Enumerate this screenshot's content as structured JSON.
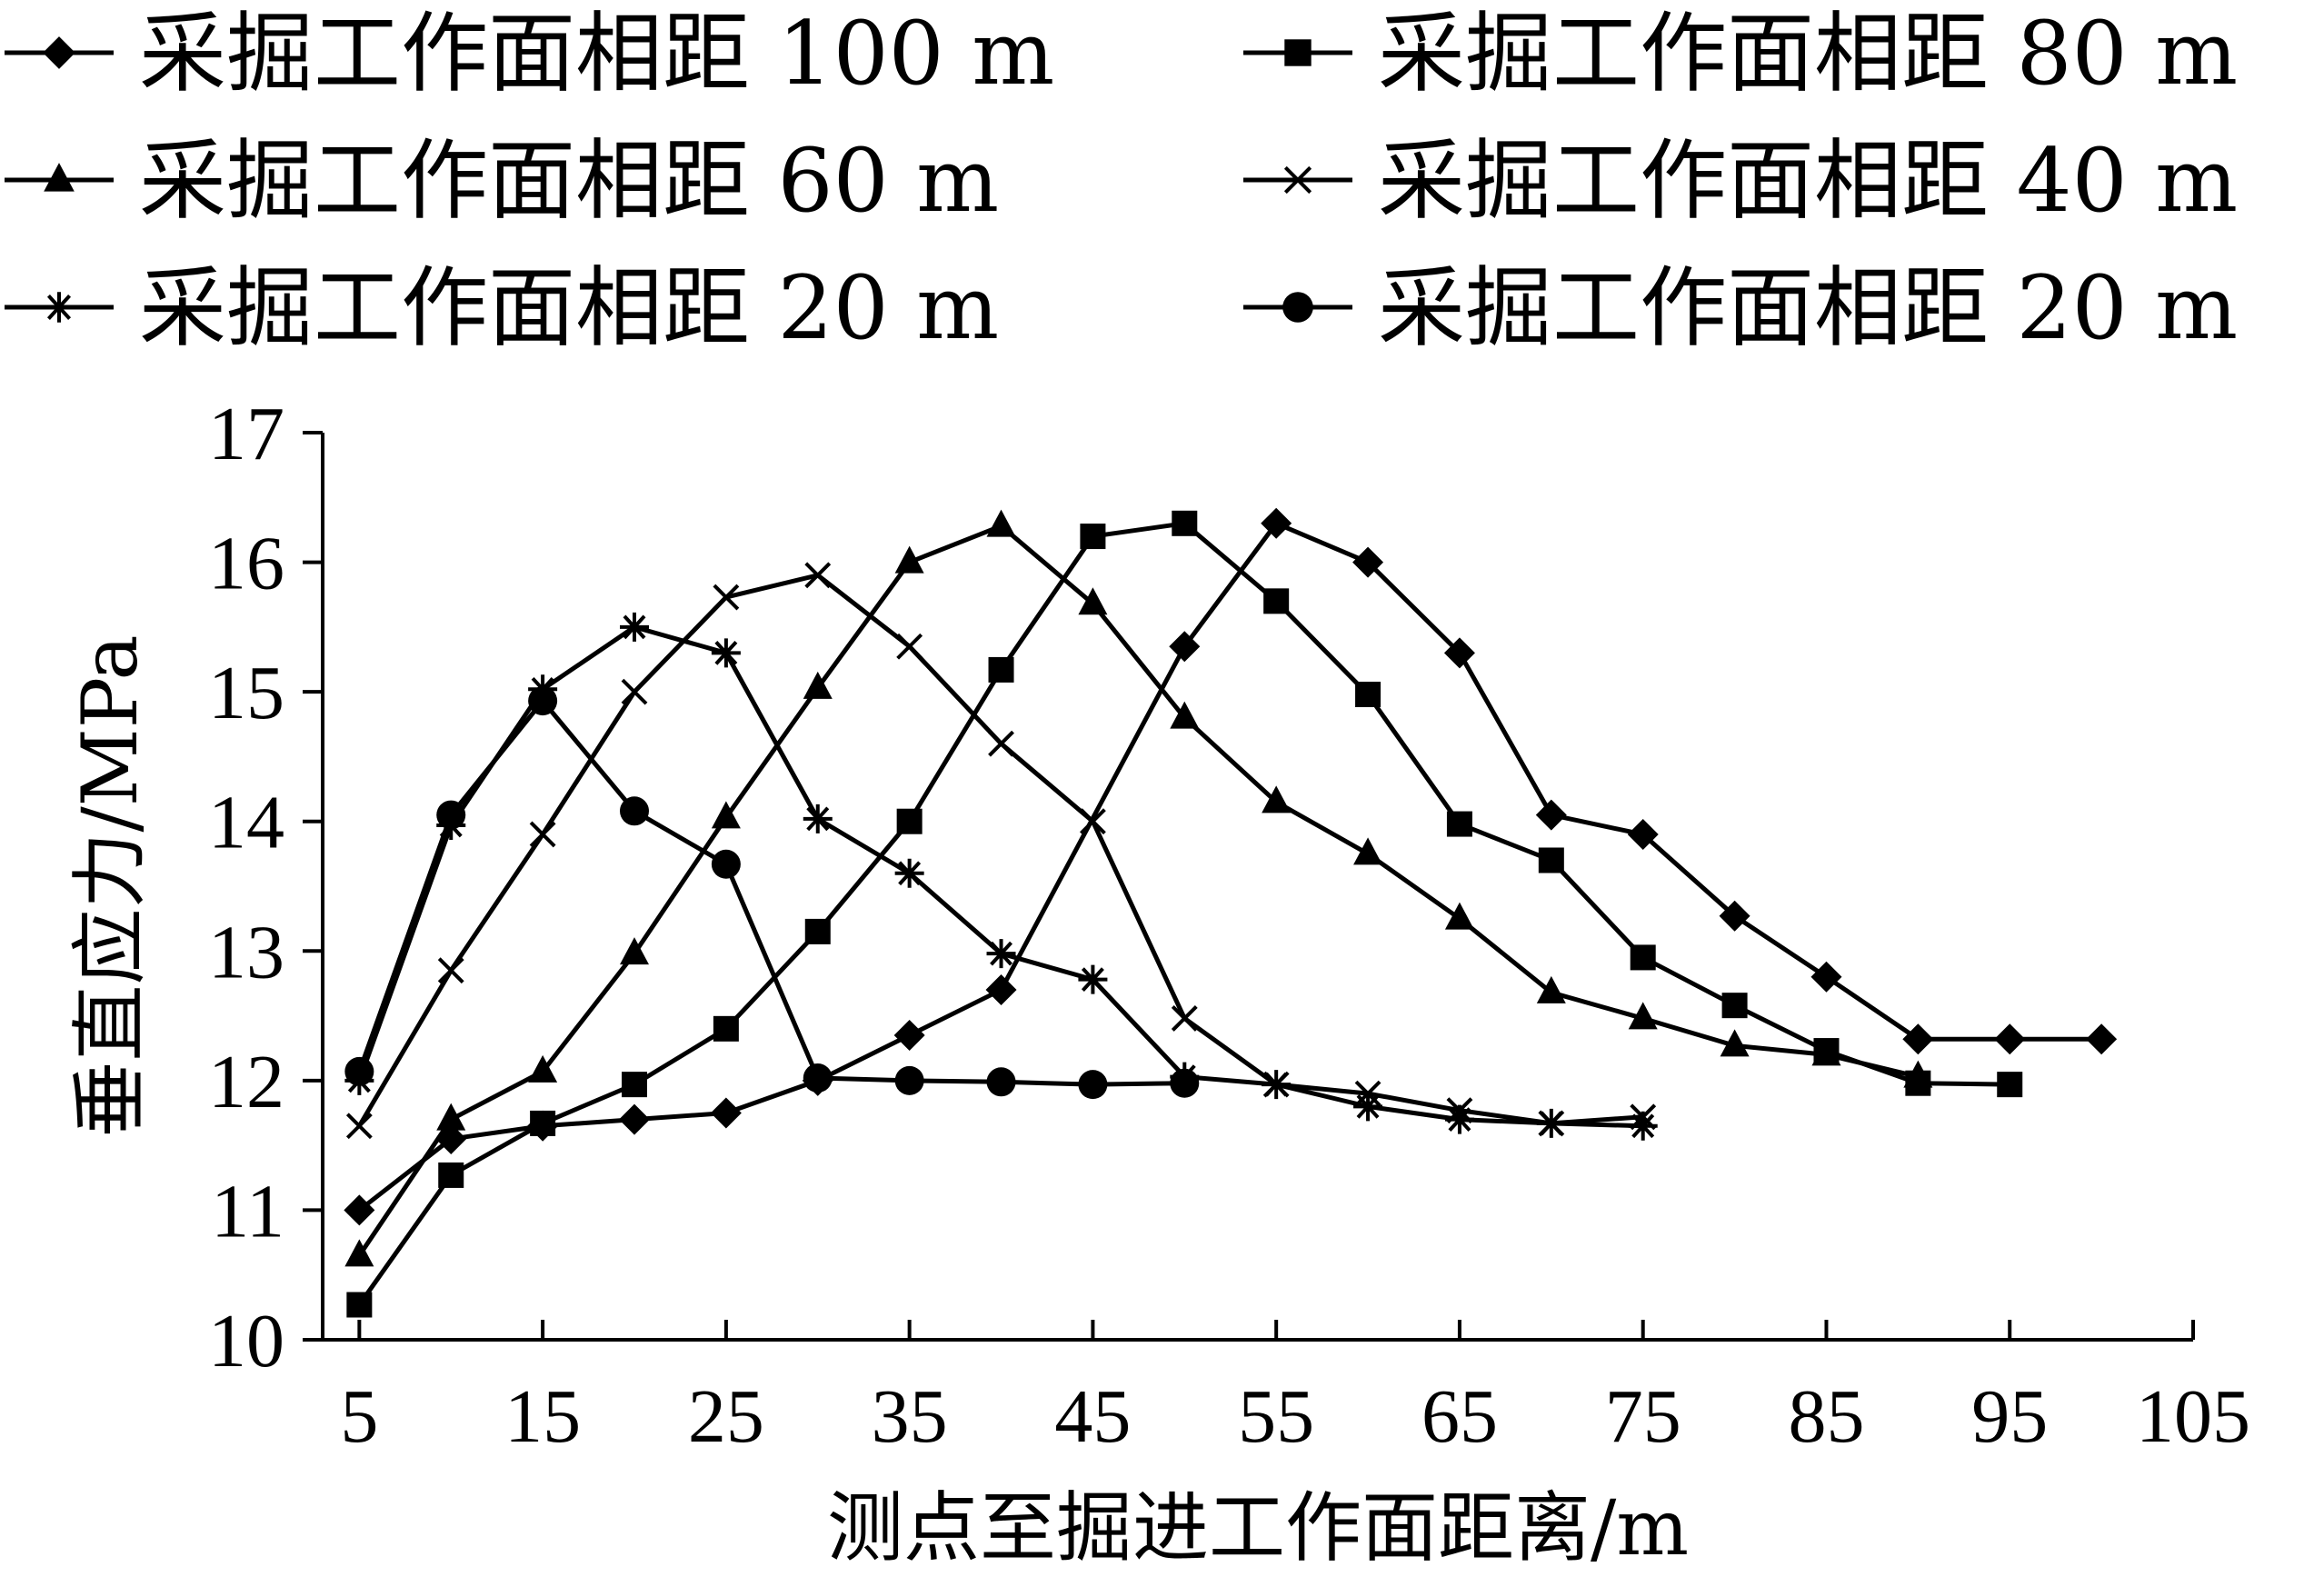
{
  "chart_data": {
    "type": "line",
    "title": "",
    "xlabel": "测点至掘进工作面距离/m",
    "ylabel": "垂直应力/MPa",
    "xlim": [
      3,
      105
    ],
    "ylim": [
      10,
      17
    ],
    "xticks": [
      5,
      15,
      25,
      35,
      45,
      55,
      65,
      75,
      85,
      95,
      105
    ],
    "yticks": [
      10,
      11,
      12,
      13,
      14,
      15,
      16,
      17
    ],
    "grid": false,
    "legend_position": "top",
    "series": [
      {
        "name": "采掘工作面相距 100 m",
        "marker": "diamond",
        "x": [
          5,
          10,
          15,
          20,
          25,
          30,
          35,
          40,
          50,
          55,
          60,
          65,
          70,
          75,
          80,
          85,
          90,
          95,
          100
        ],
        "y": [
          11.0,
          11.55,
          11.65,
          11.7,
          11.75,
          12.0,
          12.35,
          12.7,
          15.35,
          16.3,
          16.0,
          15.3,
          14.05,
          13.9,
          13.27,
          12.8,
          12.32,
          12.32,
          12.32
        ]
      },
      {
        "name": "采掘工作面相距 80 m",
        "marker": "square",
        "x": [
          5,
          10,
          15,
          20,
          25,
          30,
          35,
          40,
          45,
          50,
          55,
          60,
          65,
          70,
          75,
          80,
          85,
          90,
          95
        ],
        "y": [
          10.27,
          11.27,
          11.67,
          11.97,
          12.4,
          13.15,
          14.0,
          15.17,
          16.2,
          16.3,
          15.7,
          14.98,
          13.98,
          13.7,
          12.95,
          12.58,
          12.23,
          11.98,
          11.97
        ]
      },
      {
        "name": "采掘工作面相距 60 m",
        "marker": "triangle",
        "x": [
          5,
          10,
          15,
          20,
          25,
          30,
          35,
          40,
          45,
          50,
          55,
          60,
          65,
          70,
          75,
          80,
          85,
          90
        ],
        "y": [
          10.65,
          11.7,
          12.07,
          12.98,
          14.03,
          15.03,
          16.0,
          16.28,
          15.68,
          14.8,
          14.15,
          13.75,
          13.25,
          12.68,
          12.48,
          12.27,
          12.2,
          12.03
        ]
      },
      {
        "name": "采掘工作面相距 40 m",
        "marker": "x",
        "x": [
          5,
          10,
          15,
          20,
          25,
          30,
          35,
          40,
          45,
          50,
          55,
          60,
          65,
          70,
          75
        ],
        "y": [
          11.65,
          12.85,
          13.9,
          15.0,
          15.73,
          15.9,
          15.35,
          14.6,
          14.0,
          12.48,
          11.97,
          11.9,
          11.77,
          11.67,
          11.72
        ]
      },
      {
        "name": "采掘工作面相距 20 m",
        "marker": "asterisk",
        "x": [
          5,
          10,
          15,
          20,
          25,
          30,
          35,
          40,
          45,
          50,
          55,
          60,
          65,
          70,
          75
        ],
        "y": [
          12.0,
          13.97,
          15.02,
          15.5,
          15.3,
          14.02,
          13.6,
          12.98,
          12.78,
          12.03,
          11.97,
          11.8,
          11.7,
          11.67,
          11.65
        ]
      },
      {
        "name": "采掘工作面相距 20 m",
        "marker": "circle",
        "x": [
          5,
          10,
          15,
          20,
          25,
          30,
          35,
          40,
          45,
          50
        ],
        "y": [
          12.07,
          14.05,
          14.93,
          14.08,
          13.67,
          12.02,
          12.0,
          11.99,
          11.97,
          11.98
        ]
      }
    ]
  }
}
